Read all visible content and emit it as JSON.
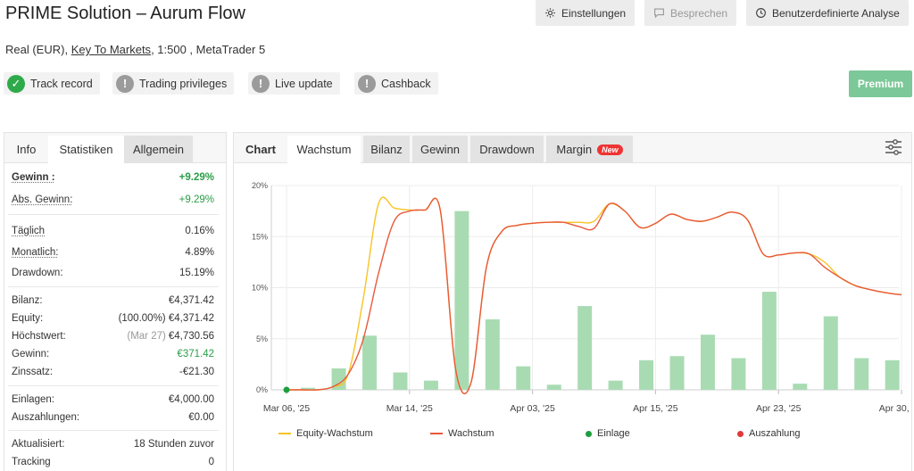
{
  "header": {
    "title": "PRIME Solution – Aurum Flow",
    "account_type": "Real (EUR),",
    "broker_link": "Key To Markets",
    "account_rest": ", 1:500 , MetaTrader 5",
    "buttons": [
      {
        "label": "Einstellungen",
        "icon": "gear-icon",
        "enabled": true
      },
      {
        "label": "Besprechen",
        "icon": "chat-icon",
        "enabled": false
      },
      {
        "label": "Benutzerdefinierte Analyse",
        "icon": "clock-icon",
        "enabled": true
      }
    ]
  },
  "badges": [
    {
      "label": "Track record",
      "status": "ok"
    },
    {
      "label": "Trading privileges",
      "status": "warn"
    },
    {
      "label": "Live update",
      "status": "warn"
    },
    {
      "label": "Cashback",
      "status": "warn"
    }
  ],
  "premium_label": "Premium",
  "left_tabs": [
    "Info",
    "Statistiken",
    "Allgemein"
  ],
  "stats": {
    "gewinn": {
      "label": "Gewinn :",
      "value": "+9.29%"
    },
    "abs_gewinn": {
      "label": "Abs. Gewinn:",
      "value": "+9.29%"
    },
    "taeglich": {
      "label": "Täglich",
      "value": "0.16%"
    },
    "monatlich": {
      "label": "Monatlich:",
      "value": "4.89%"
    },
    "drawdown": {
      "label": "Drawdown:",
      "value": "15.19%"
    },
    "bilanz": {
      "label": "Bilanz:",
      "value": "€4,371.42"
    },
    "equity": {
      "label": "Equity:",
      "prefix": "(100.00%)",
      "value": "€4,371.42"
    },
    "hoechstwert": {
      "label": "Höchstwert:",
      "prefix": "(Mar 27)",
      "value": "€4,730.56"
    },
    "gewinn_abs": {
      "label": "Gewinn:",
      "value": "€371.42"
    },
    "zinssatz": {
      "label": "Zinssatz:",
      "value": "-€21.30"
    },
    "einlagen": {
      "label": "Einlagen:",
      "value": "€4,000.00"
    },
    "auszahlungen": {
      "label": "Auszahlungen:",
      "value": "€0.00"
    },
    "aktualisiert": {
      "label": "Aktualisiert:",
      "value": "18 Stunden zuvor"
    },
    "tracking": {
      "label": "Tracking",
      "value": "0"
    }
  },
  "chart_tabs": {
    "label": "Chart",
    "items": [
      "Wachstum",
      "Bilanz",
      "Gewinn",
      "Drawdown",
      "Margin"
    ],
    "new_badge": "New"
  },
  "chart_data": {
    "type": "line",
    "y_ticks": [
      "0%",
      "5%",
      "10%",
      "15%",
      "20%"
    ],
    "ylim": [
      0,
      20
    ],
    "x_tick_labels": [
      "Mar 06, '25",
      "Mar 14, '25",
      "Apr 03, '25",
      "Apr 15, '25",
      "Apr 23, '25",
      "Apr 30, '25"
    ],
    "x_tick_index": [
      0,
      4,
      8,
      12,
      16,
      20
    ],
    "series": [
      {
        "name": "Equity-Wachstum",
        "type": "line",
        "color": "#f7c325",
        "x": [
          0,
          0.5,
          1,
          1.5,
          2,
          2.5,
          3,
          3.5,
          4,
          4.5,
          5,
          5.5,
          6,
          6.5,
          7,
          7.5,
          8,
          8.5,
          9,
          9.5,
          10,
          10.5,
          11,
          11.5,
          12,
          12.5,
          13,
          13.5,
          14,
          14.5,
          15,
          15.5,
          16,
          16.5,
          17,
          17.5,
          18,
          18.5,
          19,
          19.5,
          20
        ],
        "values": [
          0,
          0,
          0,
          0.3,
          1.5,
          9.0,
          18.3,
          17.8,
          17.6,
          17.6,
          17.6,
          2.0,
          0.7,
          12.0,
          15.5,
          16.1,
          16.3,
          16.4,
          16.4,
          16.4,
          16.5,
          18.2,
          17.5,
          15.9,
          16.3,
          17.2,
          16.7,
          16.5,
          16.9,
          17.4,
          16.6,
          13.3,
          13.2,
          13.4,
          13.3,
          12.5,
          11.0,
          10.2,
          9.8,
          9.5,
          9.3
        ]
      },
      {
        "name": "Wachstum",
        "type": "line",
        "color": "#e8593a",
        "x": [
          0,
          0.5,
          1,
          1.5,
          2,
          2.5,
          3,
          3.5,
          4,
          4.5,
          5,
          5.5,
          6,
          6.5,
          7,
          7.5,
          8,
          8.5,
          9,
          9.5,
          10,
          10.5,
          11,
          11.5,
          12,
          12.5,
          13,
          13.5,
          14,
          14.5,
          15,
          15.5,
          16,
          16.5,
          17,
          17.5,
          18,
          18.5,
          19,
          19.5,
          20
        ],
        "values": [
          0,
          0,
          0,
          0.3,
          1.5,
          5.0,
          11.5,
          16.5,
          17.5,
          17.6,
          17.6,
          2.0,
          0.7,
          12.0,
          15.5,
          16.1,
          16.3,
          16.4,
          16.4,
          16.0,
          15.8,
          18.2,
          17.5,
          15.9,
          16.3,
          17.2,
          16.7,
          16.5,
          16.9,
          17.4,
          16.6,
          13.3,
          13.2,
          13.4,
          13.3,
          12.0,
          11.0,
          10.2,
          9.8,
          9.5,
          9.3
        ]
      }
    ],
    "bars": {
      "x": [
        0.7,
        1.7,
        2.7,
        3.7,
        4.7,
        5.7,
        6.7,
        7.7,
        8.7,
        9.7,
        10.7,
        11.7,
        12.7,
        13.7,
        14.7,
        15.7,
        16.7,
        17.7,
        18.7,
        19.7
      ],
      "values": [
        0.2,
        2.1,
        5.3,
        1.7,
        0.9,
        17.5,
        6.9,
        2.3,
        0.5,
        8.2,
        0.9,
        2.9,
        3.3,
        5.4,
        3.1,
        9.6,
        0.6,
        7.2,
        3.1,
        2.9
      ],
      "color": "#a9dbb3"
    },
    "markers": [
      {
        "series": "Einlage",
        "x": 0,
        "value": 0,
        "color": "#1e9e3e"
      }
    ],
    "legend": [
      {
        "name": "Equity-Wachstum",
        "kind": "line",
        "color": "#f7c325"
      },
      {
        "name": "Wachstum",
        "kind": "line",
        "color": "#e8593a"
      },
      {
        "name": "Einlage",
        "kind": "dot",
        "color": "#1e9e3e"
      },
      {
        "name": "Auszahlung",
        "kind": "dot",
        "color": "#e03a3a"
      }
    ],
    "legend_position": "bottom"
  }
}
